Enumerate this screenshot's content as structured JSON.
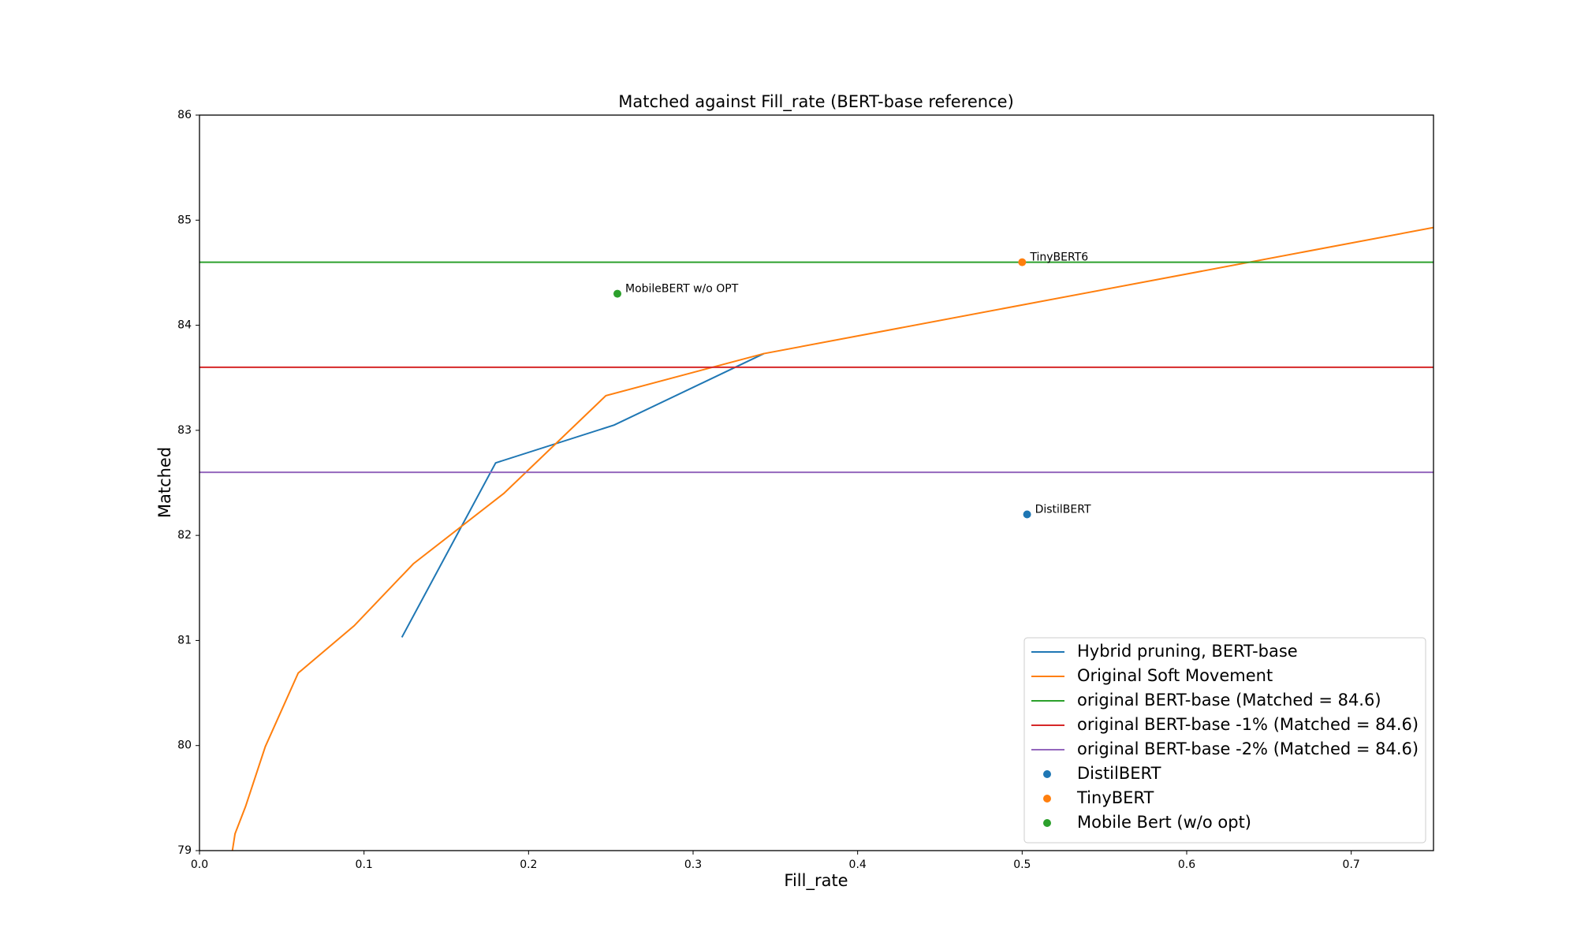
{
  "chart_data": {
    "type": "line",
    "title": "Matched against Fill_rate (BERT-base reference)",
    "xlabel": "Fill_rate",
    "ylabel": "Matched",
    "xlim": [
      0,
      0.75
    ],
    "ylim": [
      79,
      86
    ],
    "xticks": [
      {
        "value": 0,
        "label": "0.0"
      },
      0.1,
      0.2,
      0.3,
      0.4,
      0.5,
      0.6,
      0.7
    ],
    "yticks": [
      79,
      80,
      81,
      82,
      83,
      84,
      85,
      86
    ],
    "legend": "lower right",
    "series": [
      {
        "name": "Hybrid pruning, BERT-base",
        "kind": "line",
        "color": "#1f77b4",
        "x": [
          0.123,
          0.18,
          0.252,
          0.343
        ],
        "values": [
          81.03,
          82.69,
          83.05,
          83.73
        ]
      },
      {
        "name": "Original Soft Movement",
        "kind": "line",
        "color": "#ff7f0e",
        "x": [
          0.02,
          0.0216,
          0.028,
          0.04,
          0.06,
          0.094,
          0.13,
          0.185,
          0.247,
          0.343,
          0.75
        ],
        "values": [
          79.0,
          79.16,
          79.42,
          79.99,
          80.69,
          81.14,
          81.73,
          82.4,
          83.33,
          83.73,
          84.93
        ]
      },
      {
        "name": "original BERT-base (Matched = 84.6)",
        "kind": "hline",
        "color": "#2ca02c",
        "values": [
          84.6
        ]
      },
      {
        "name": "original BERT-base -1% (Matched = 84.6)",
        "kind": "hline",
        "color": "#d62728",
        "values": [
          83.6
        ]
      },
      {
        "name": "original BERT-base -2% (Matched = 84.6)",
        "kind": "hline",
        "color": "#9467bd",
        "values": [
          82.6
        ]
      },
      {
        "name": "DistilBERT",
        "kind": "scatter",
        "color": "#1f77b4",
        "x": [
          0.503
        ],
        "values": [
          82.2
        ],
        "annotation": "DistilBERT"
      },
      {
        "name": "TinyBERT",
        "kind": "scatter",
        "color": "#ff7f0e",
        "x": [
          0.5
        ],
        "values": [
          84.6
        ],
        "annotation": "TinyBERT6"
      },
      {
        "name": "Mobile Bert (w/o opt)",
        "kind": "scatter",
        "color": "#2ca02c",
        "x": [
          0.254
        ],
        "values": [
          84.3
        ],
        "annotation": "MobileBERT w/o OPT"
      }
    ]
  }
}
